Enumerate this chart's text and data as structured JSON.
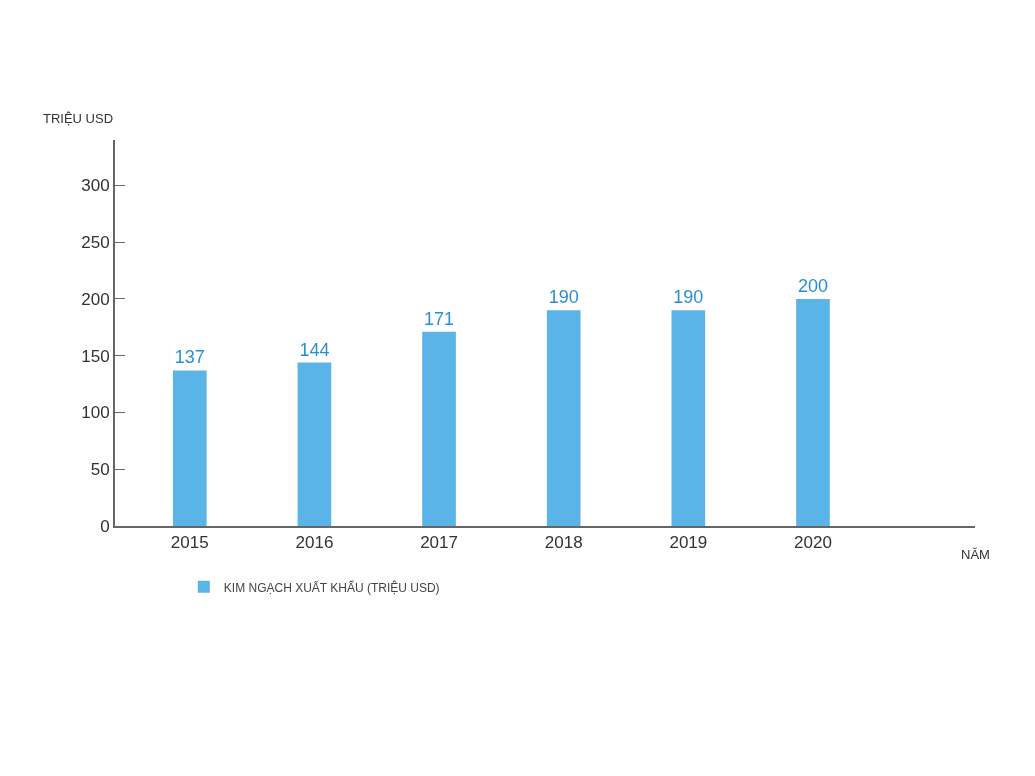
{
  "chart_data": {
    "type": "bar",
    "xlabel": "NĂM",
    "ylabel": "TRIỆU USD",
    "categories": [
      "2015",
      "2016",
      "2017",
      "2018",
      "2019",
      "2020"
    ],
    "series": [
      {
        "name": "KIM NGẠCH XUẤT KHẨU (TRIỆU USD)",
        "color": "#5ab4e8",
        "values": [
          137,
          144,
          171,
          190,
          190,
          200
        ]
      }
    ],
    "ylim": [
      0,
      340
    ],
    "yticks": [
      0,
      50,
      100,
      150,
      200,
      250,
      300
    ],
    "data_labels": true,
    "grid": false,
    "legend": "bottom left"
  }
}
